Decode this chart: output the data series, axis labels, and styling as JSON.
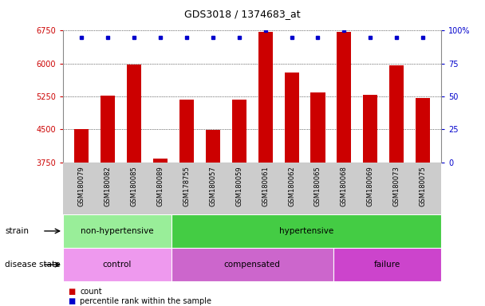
{
  "title": "GDS3018 / 1374683_at",
  "samples": [
    "GSM180079",
    "GSM180082",
    "GSM180085",
    "GSM180089",
    "GSM178755",
    "GSM180057",
    "GSM180059",
    "GSM180061",
    "GSM180062",
    "GSM180065",
    "GSM180068",
    "GSM180069",
    "GSM180073",
    "GSM180075"
  ],
  "counts": [
    4500,
    5270,
    5970,
    3840,
    5180,
    4480,
    5170,
    6720,
    5800,
    5340,
    6720,
    5280,
    5960,
    5220
  ],
  "percentile_ranks": [
    95,
    95,
    95,
    95,
    95,
    95,
    95,
    100,
    95,
    95,
    100,
    95,
    95,
    95
  ],
  "ylim_left": [
    3750,
    6750
  ],
  "ylim_right": [
    0,
    100
  ],
  "yticks_left": [
    3750,
    4500,
    5250,
    6000,
    6750
  ],
  "yticks_right": [
    0,
    25,
    50,
    75,
    100
  ],
  "bar_color": "#cc0000",
  "dot_color": "#0000cc",
  "grid_color": "#000000",
  "strain_groups": [
    {
      "label": "non-hypertensive",
      "start": 0,
      "end": 4,
      "color": "#99ee99"
    },
    {
      "label": "hypertensive",
      "start": 4,
      "end": 14,
      "color": "#44cc44"
    }
  ],
  "disease_groups": [
    {
      "label": "control",
      "start": 0,
      "end": 4,
      "color": "#ee99ee"
    },
    {
      "label": "compensated",
      "start": 4,
      "end": 10,
      "color": "#cc66cc"
    },
    {
      "label": "failure",
      "start": 10,
      "end": 14,
      "color": "#cc44cc"
    }
  ],
  "legend_count_label": "count",
  "legend_percentile_label": "percentile rank within the sample",
  "strain_label": "strain",
  "disease_label": "disease state",
  "tick_label_color_left": "#cc0000",
  "tick_label_color_right": "#0000cc",
  "background_color": "#ffffff",
  "bar_bottom": 3750,
  "xtick_bg": "#cccccc"
}
